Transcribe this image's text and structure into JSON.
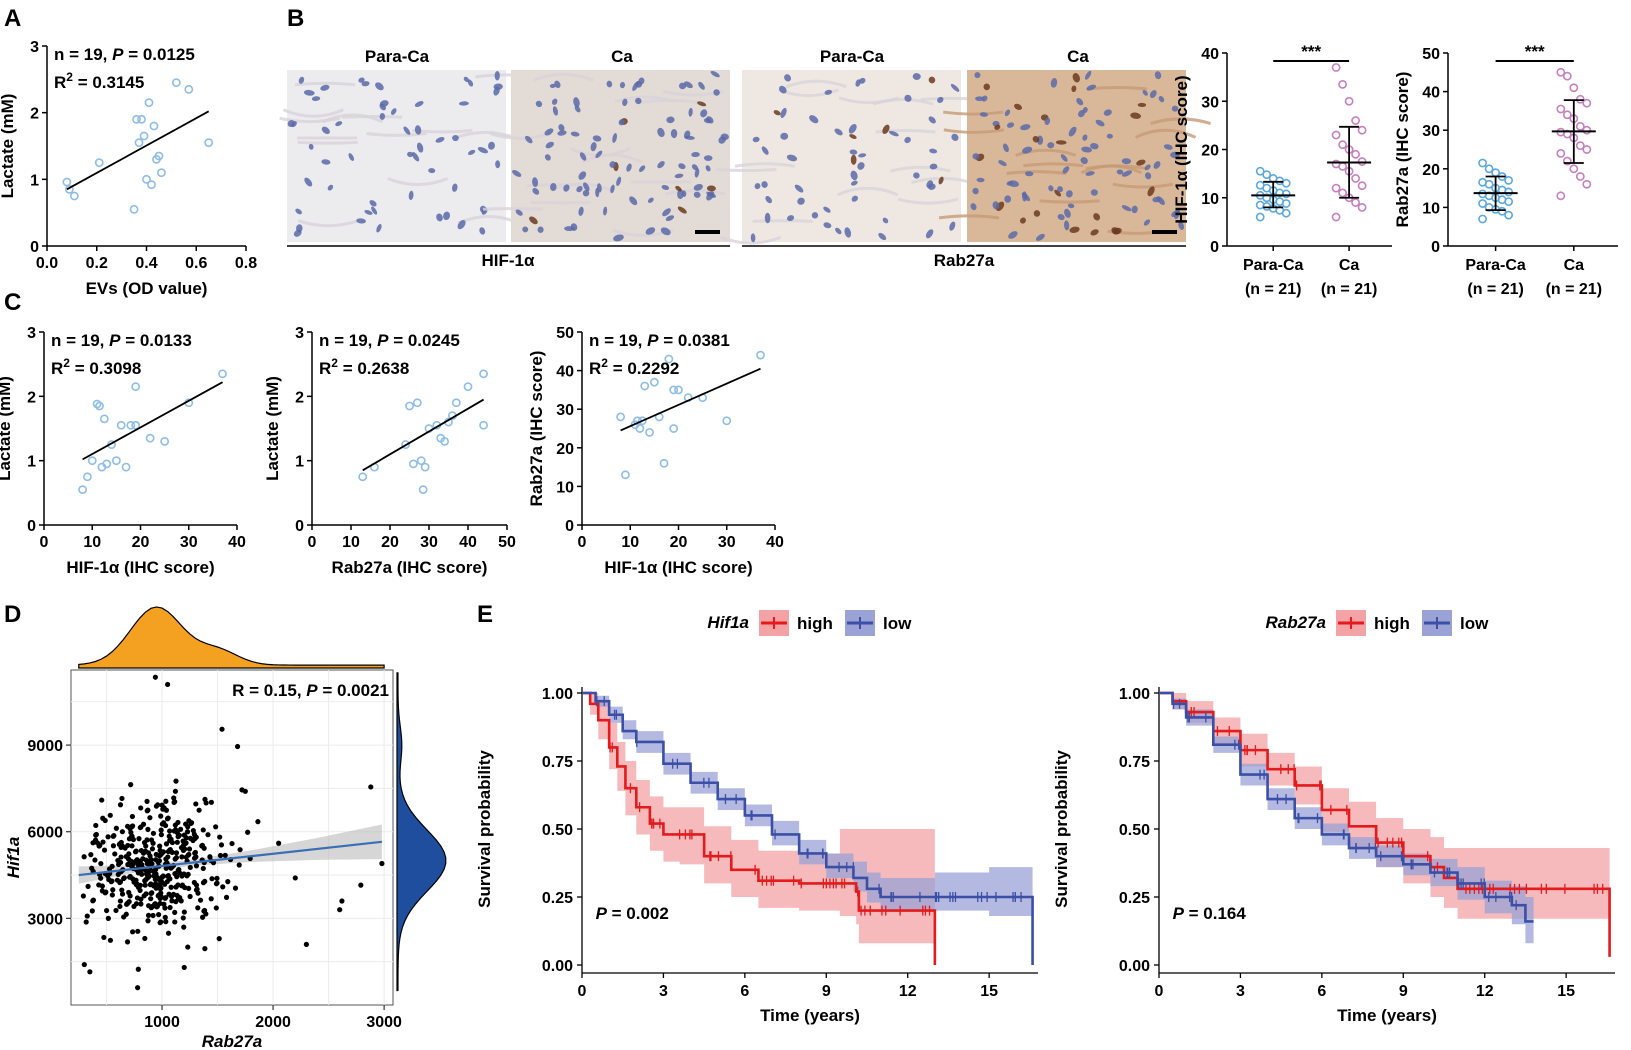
{
  "panel_labels": [
    "A",
    "B",
    "C",
    "D",
    "E"
  ],
  "colors": {
    "scatter_point": "#8dbde8",
    "para_ca_point": "#5aa8e0",
    "ca_point": "#c77fbf",
    "regression": "#000000",
    "density_top": "#f4a020",
    "density_right": "#1f4e9e",
    "smooth_line": "#3a6fb5",
    "km_high": "#e41a1c",
    "km_high_band": "#f3a3a6",
    "km_low": "#3b4fa6",
    "km_low_band": "#9aa2d6"
  },
  "chart_data": [
    {
      "id": "A",
      "type": "scatter",
      "title": "",
      "xlabel": "EVs (OD value)",
      "ylabel": "Lactate (mM)",
      "xlim": [
        0.0,
        0.8
      ],
      "ylim": [
        0,
        3
      ],
      "xticks": [
        "0.0",
        "0.2",
        "0.4",
        "0.6",
        "0.8"
      ],
      "yticks": [
        "0",
        "1",
        "2",
        "3"
      ],
      "annotation_n": "n = 19, ",
      "annotation_p_label": "P",
      "annotation_p_value": " = 0.0125",
      "annotation_r2_label": "R",
      "annotation_r2_sup": "2",
      "annotation_r2_value": " = 0.3145",
      "x": [
        0.08,
        0.09,
        0.11,
        0.21,
        0.35,
        0.36,
        0.37,
        0.38,
        0.39,
        0.4,
        0.41,
        0.42,
        0.43,
        0.44,
        0.45,
        0.46,
        0.52,
        0.57,
        0.65
      ],
      "y": [
        0.96,
        0.85,
        0.75,
        1.25,
        0.55,
        1.9,
        1.55,
        1.9,
        1.65,
        1.0,
        2.15,
        0.92,
        1.8,
        1.3,
        1.35,
        1.1,
        2.45,
        2.35,
        1.55
      ],
      "fit": {
        "x": [
          0.08,
          0.65
        ],
        "y": [
          0.85,
          2.02
        ]
      }
    },
    {
      "id": "C1",
      "type": "scatter",
      "xlabel": "HIF-1α (IHC score)",
      "ylabel": "Lactate (mM)",
      "xlim": [
        0,
        40
      ],
      "ylim": [
        0,
        3
      ],
      "xticks": [
        "0",
        "10",
        "20",
        "30",
        "40"
      ],
      "yticks": [
        "0",
        "1",
        "2",
        "3"
      ],
      "annotation_n": "n = 19, ",
      "annotation_p_label": "P",
      "annotation_p_value": " = 0.0133",
      "annotation_r2_label": "R",
      "annotation_r2_sup": "2",
      "annotation_r2_value": " = 0.3098",
      "x": [
        8,
        9,
        11,
        11.5,
        12,
        12.5,
        13,
        14,
        15,
        16,
        17,
        18,
        19,
        19,
        22,
        25,
        30,
        37,
        10
      ],
      "y": [
        0.55,
        0.75,
        1.88,
        1.85,
        0.9,
        1.65,
        0.95,
        1.25,
        1.0,
        1.55,
        0.9,
        1.55,
        1.55,
        2.15,
        1.35,
        1.3,
        1.9,
        2.35,
        1.0
      ],
      "fit": {
        "x": [
          8,
          37
        ],
        "y": [
          1.02,
          2.22
        ]
      }
    },
    {
      "id": "C2",
      "type": "scatter",
      "xlabel": "Rab27a (IHC score)",
      "ylabel": "Lactate (mM)",
      "xlim": [
        0,
        50
      ],
      "ylim": [
        0,
        3
      ],
      "xticks": [
        "0",
        "10",
        "20",
        "30",
        "40",
        "50"
      ],
      "yticks": [
        "0",
        "1",
        "2",
        "3"
      ],
      "annotation_n": "n = 19, ",
      "annotation_p_label": "P",
      "annotation_p_value": " = 0.0245",
      "annotation_r2_label": "R",
      "annotation_r2_sup": "2",
      "annotation_r2_value": " = 0.2638",
      "x": [
        13,
        16,
        24,
        25,
        26,
        27,
        28,
        28.5,
        29,
        30,
        32,
        33,
        34,
        35,
        36,
        37,
        40,
        44,
        44
      ],
      "y": [
        0.75,
        0.9,
        1.25,
        1.85,
        0.95,
        1.9,
        1.0,
        0.55,
        0.9,
        1.5,
        1.55,
        1.35,
        1.3,
        1.6,
        1.7,
        1.9,
        2.15,
        2.35,
        1.55
      ],
      "fit": {
        "x": [
          13,
          44
        ],
        "y": [
          0.85,
          1.95
        ]
      }
    },
    {
      "id": "C3",
      "type": "scatter",
      "xlabel": "HIF-1α (IHC score)",
      "ylabel": "Rab27a (IHC score)",
      "xlim": [
        0,
        40
      ],
      "ylim": [
        0,
        50
      ],
      "xticks": [
        "0",
        "10",
        "20",
        "30",
        "40"
      ],
      "yticks": [
        "0",
        "10",
        "20",
        "30",
        "40",
        "50"
      ],
      "annotation_n": "n = 19, ",
      "annotation_p_label": "P",
      "annotation_p_value": " = 0.0381",
      "annotation_r2_label": "R",
      "annotation_r2_sup": "2",
      "annotation_r2_value": " = 0.2292",
      "x": [
        8,
        9,
        11,
        11.5,
        12,
        12.5,
        13,
        14,
        15,
        16,
        17,
        18,
        19,
        19,
        20,
        22,
        25,
        30,
        37
      ],
      "y": [
        28,
        13,
        26,
        27,
        25,
        27,
        36,
        24,
        37,
        28,
        16,
        43,
        25,
        35,
        35,
        33,
        33,
        27,
        44
      ],
      "fit": {
        "x": [
          8,
          37
        ],
        "y": [
          24.5,
          40.5
        ]
      }
    },
    {
      "id": "B_HIF",
      "type": "scatter",
      "xlabel": "",
      "ylabel": "HIF-1α (IHC score)",
      "ylim": [
        0,
        40
      ],
      "yticks": [
        "0",
        "10",
        "20",
        "30",
        "40"
      ],
      "categories": [
        "Para-Ca",
        "Ca"
      ],
      "category_n": [
        "(n = 21)",
        "(n = 21)"
      ],
      "significance": "***",
      "groups": [
        {
          "name": "Para-Ca",
          "mean": 10.5,
          "sd_low": 8.0,
          "sd_high": 13.3,
          "values": [
            15.5,
            14.8,
            14.0,
            13.5,
            13.0,
            12.6,
            12.0,
            11.5,
            11.0,
            10.8,
            10.5,
            10.0,
            9.6,
            9.2,
            8.8,
            8.5,
            8.2,
            7.8,
            7.4,
            6.8,
            6.0
          ]
        },
        {
          "name": "Ca",
          "mean": 17.3,
          "sd_low": 10.0,
          "sd_high": 24.7,
          "values": [
            37.0,
            33.5,
            30.0,
            26.0,
            24.0,
            23.0,
            21.0,
            20.0,
            19.0,
            17.5,
            17.0,
            16.5,
            15.5,
            14.0,
            12.5,
            12.0,
            11.0,
            10.0,
            9.0,
            8.0,
            6.0
          ]
        }
      ]
    },
    {
      "id": "B_Rab",
      "type": "scatter",
      "xlabel": "",
      "ylabel": "Rab27a (IHC score)",
      "ylim": [
        0,
        50
      ],
      "yticks": [
        "0",
        "10",
        "20",
        "30",
        "40",
        "50"
      ],
      "categories": [
        "Para-Ca",
        "Ca"
      ],
      "category_n": [
        "(n = 21)",
        "(n = 21)"
      ],
      "significance": "***",
      "groups": [
        {
          "name": "Para-Ca",
          "mean": 13.7,
          "sd_low": 9.3,
          "sd_high": 18.0,
          "values": [
            21.5,
            20.0,
            19.0,
            18.0,
            17.0,
            16.5,
            16.0,
            15.0,
            14.5,
            14.0,
            13.5,
            13.0,
            12.5,
            12.0,
            11.5,
            11.0,
            10.0,
            9.5,
            9.0,
            8.0,
            7.0
          ]
        },
        {
          "name": "Ca",
          "mean": 29.7,
          "sd_low": 21.5,
          "sd_high": 37.8,
          "values": [
            45.0,
            44.0,
            41.0,
            38.0,
            37.0,
            35.5,
            34.0,
            33.0,
            31.0,
            30.0,
            29.5,
            29.0,
            28.0,
            26.0,
            25.0,
            24.0,
            22.0,
            20.0,
            18.0,
            16.0,
            13.0
          ]
        }
      ]
    },
    {
      "id": "D",
      "type": "scatter",
      "xlabel": "Rab27a",
      "ylabel": "Hif1a",
      "xlim": [
        180,
        3080
      ],
      "ylim": [
        0,
        11600
      ],
      "xticks": [
        1000,
        2000,
        3000
      ],
      "yticks": [
        3000,
        6000,
        9000
      ],
      "xtick_labels": [
        "1000",
        "2000",
        "3000"
      ],
      "ytick_labels": [
        "3000",
        "6000",
        "9000"
      ],
      "annotation_r": "R = 0.15, ",
      "annotation_p_label": "P",
      "annotation_p_value": " = 0.0021",
      "fit": {
        "x": [
          250,
          2980
        ],
        "y": [
          4500,
          5650
        ]
      },
      "n_points": 430,
      "outliers": [
        [
          940,
          11350
        ],
        [
          1050,
          11100
        ],
        [
          1540,
          9550
        ],
        [
          2880,
          7550
        ],
        [
          1680,
          8950
        ],
        [
          2620,
          3600
        ],
        [
          2600,
          3300
        ],
        [
          2300,
          2100
        ],
        [
          300,
          1400
        ],
        [
          350,
          1150
        ],
        [
          780,
          600
        ],
        [
          1200,
          1300
        ],
        [
          2790,
          4150
        ],
        [
          2980,
          4900
        ],
        [
          2200,
          4400
        ],
        [
          2050,
          5600
        ],
        [
          1750,
          7400
        ],
        [
          1720,
          7450
        ]
      ]
    },
    {
      "id": "E1",
      "type": "line",
      "gene": "Hif1a",
      "legend_high": "high",
      "legend_low": "low",
      "xlabel": "Time (years)",
      "ylabel": "Survival probability",
      "xlim": [
        0,
        16.8
      ],
      "ylim": [
        0,
        1
      ],
      "xticks": [
        "0",
        "3",
        "6",
        "9",
        "12",
        "15"
      ],
      "yticks": [
        "0.00",
        "0.25",
        "0.50",
        "0.75",
        "1.00"
      ],
      "p_label": "P",
      "p_value": " = 0.002",
      "series": [
        {
          "name": "high",
          "x": [
            0,
            0.3,
            0.6,
            1.0,
            1.3,
            1.6,
            2.0,
            2.5,
            3.0,
            3.6,
            4.5,
            5.5,
            6.5,
            8.0,
            9.5,
            10.1,
            10.2,
            12.0,
            13.0,
            13.0
          ],
          "y": [
            1.0,
            0.96,
            0.9,
            0.8,
            0.73,
            0.65,
            0.58,
            0.52,
            0.48,
            0.48,
            0.4,
            0.35,
            0.31,
            0.3,
            0.3,
            0.27,
            0.2,
            0.2,
            0.2,
            0.0
          ],
          "lo": [
            1.0,
            0.92,
            0.83,
            0.72,
            0.64,
            0.55,
            0.48,
            0.42,
            0.38,
            0.37,
            0.3,
            0.25,
            0.21,
            0.2,
            0.18,
            0.15,
            0.08,
            0.08,
            0.08,
            0.08
          ],
          "hi": [
            1.0,
            1.0,
            0.97,
            0.89,
            0.82,
            0.75,
            0.68,
            0.62,
            0.58,
            0.58,
            0.51,
            0.46,
            0.42,
            0.41,
            0.5,
            0.5,
            0.5,
            0.5,
            0.5,
            0.5
          ]
        },
        {
          "name": "low",
          "x": [
            0,
            0.5,
            1.0,
            1.5,
            2.0,
            3.0,
            4.0,
            5.0,
            6.0,
            7.0,
            8.0,
            9.0,
            10.0,
            10.5,
            11.0,
            13.0,
            15.0,
            16.6,
            16.6
          ],
          "y": [
            1.0,
            0.97,
            0.92,
            0.86,
            0.82,
            0.74,
            0.67,
            0.61,
            0.55,
            0.48,
            0.41,
            0.36,
            0.32,
            0.28,
            0.25,
            0.25,
            0.25,
            0.25,
            0.0
          ],
          "lo": [
            1.0,
            0.95,
            0.89,
            0.83,
            0.78,
            0.7,
            0.63,
            0.57,
            0.51,
            0.44,
            0.37,
            0.32,
            0.27,
            0.23,
            0.2,
            0.2,
            0.18,
            0.15,
            0.15
          ],
          "hi": [
            1.0,
            0.99,
            0.95,
            0.9,
            0.86,
            0.78,
            0.71,
            0.65,
            0.59,
            0.53,
            0.46,
            0.41,
            0.38,
            0.34,
            0.32,
            0.34,
            0.36,
            0.36,
            0.36
          ]
        }
      ]
    },
    {
      "id": "E2",
      "type": "line",
      "gene": "Rab27a",
      "legend_high": "high",
      "legend_low": "low",
      "xlabel": "Time (years)",
      "ylabel": "Survival probability",
      "xlim": [
        0,
        16.8
      ],
      "ylim": [
        0,
        1
      ],
      "xticks": [
        "0",
        "3",
        "6",
        "9",
        "12",
        "15"
      ],
      "yticks": [
        "0.00",
        "0.25",
        "0.50",
        "0.75",
        "1.00"
      ],
      "p_label": "P",
      "p_value": " = 0.164",
      "series": [
        {
          "name": "high",
          "x": [
            0,
            0.5,
            1.0,
            2.0,
            3.0,
            4.0,
            5.0,
            6.0,
            7.0,
            8.0,
            9.0,
            10.0,
            10.5,
            11.0,
            12.0,
            14.5,
            16.6,
            16.6
          ],
          "y": [
            1.0,
            0.97,
            0.93,
            0.86,
            0.79,
            0.72,
            0.66,
            0.57,
            0.51,
            0.45,
            0.4,
            0.36,
            0.32,
            0.28,
            0.28,
            0.28,
            0.28,
            0.03
          ],
          "lo": [
            1.0,
            0.94,
            0.89,
            0.81,
            0.73,
            0.66,
            0.59,
            0.49,
            0.43,
            0.36,
            0.3,
            0.25,
            0.21,
            0.17,
            0.17,
            0.17,
            0.17,
            0.17
          ],
          "hi": [
            1.0,
            1.0,
            0.97,
            0.91,
            0.85,
            0.78,
            0.73,
            0.65,
            0.6,
            0.54,
            0.5,
            0.47,
            0.43,
            0.43,
            0.43,
            0.43,
            0.43,
            0.43
          ]
        },
        {
          "name": "low",
          "x": [
            0,
            0.5,
            1.0,
            2.0,
            3.0,
            4.0,
            5.0,
            6.0,
            7.0,
            8.0,
            9.0,
            10.0,
            11.0,
            12.0,
            13.0,
            13.5,
            13.8
          ],
          "y": [
            1.0,
            0.96,
            0.91,
            0.81,
            0.7,
            0.61,
            0.54,
            0.48,
            0.43,
            0.4,
            0.37,
            0.34,
            0.3,
            0.25,
            0.22,
            0.16,
            0.16
          ],
          "lo": [
            1.0,
            0.94,
            0.88,
            0.78,
            0.66,
            0.57,
            0.5,
            0.44,
            0.39,
            0.36,
            0.33,
            0.29,
            0.24,
            0.19,
            0.15,
            0.08,
            0.08
          ],
          "hi": [
            1.0,
            0.98,
            0.94,
            0.84,
            0.74,
            0.65,
            0.58,
            0.52,
            0.47,
            0.44,
            0.41,
            0.39,
            0.36,
            0.31,
            0.29,
            0.25,
            0.25
          ]
        }
      ]
    }
  ],
  "micrographs": {
    "group_label_hif": "HIF-1α",
    "group_label_rab": "Rab27a",
    "tile_labels": [
      "Para-Ca",
      "Ca",
      "Para-Ca",
      "Ca"
    ]
  }
}
